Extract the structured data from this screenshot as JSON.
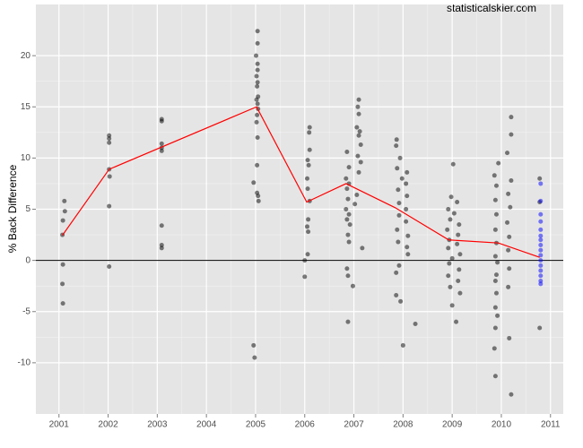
{
  "chart_data": {
    "type": "scatter",
    "watermark": "statisticalskier.com",
    "ylabel": "% Back Difference",
    "xlim": [
      2000.53,
      2011.26
    ],
    "ylim": [
      -15,
      25
    ],
    "xticks": [
      2001,
      2002,
      2003,
      2004,
      2005,
      2006,
      2007,
      2008,
      2009,
      2010,
      2011
    ],
    "yticks": [
      -10,
      -5,
      0,
      5,
      10,
      15,
      20
    ],
    "grid": true,
    "hline": 0,
    "hline_color": "#000000",
    "series": [
      {
        "color": "#000000",
        "x": [
          2001.11,
          2001.12,
          2001.08,
          2001.07,
          2001.08,
          2001.07,
          2001.08,
          2002.02,
          2002.02,
          2002.02,
          2002.02,
          2002.03,
          2002.02,
          2002.02,
          2003.09,
          2003.09,
          2003.09,
          2003.09,
          2003.09,
          2003.09,
          2003.09,
          2003.09,
          2005.04,
          2005.04,
          2005.01,
          2005.04,
          2005.04,
          2005.02,
          2005.04,
          2005.03,
          2005.05,
          2005.02,
          2005.04,
          2005.05,
          2005.03,
          2005.02,
          2005.04,
          2005.03,
          2004.96,
          2005.03,
          2005.05,
          2005.06,
          2004.96,
          2004.98,
          2006.1,
          2006.09,
          2006.1,
          2006.06,
          2006.08,
          2006.05,
          2006.06,
          2006.1,
          2006.07,
          2006.05,
          2006.07,
          2006.06,
          2006.0,
          2006.0,
          2007.1,
          2007.08,
          2007.1,
          2007.06,
          2007.12,
          2007.1,
          2007.14,
          2006.86,
          2007.08,
          2007.14,
          2006.9,
          2007.1,
          2006.84,
          2006.9,
          2006.86,
          2007.06,
          2006.88,
          2007.02,
          2006.84,
          2006.9,
          2006.86,
          2006.92,
          2006.88,
          2006.9,
          2007.17,
          2006.86,
          2006.88,
          2006.98,
          2006.88,
          2007.87,
          2007.86,
          2007.94,
          2007.88,
          2008.08,
          2007.98,
          2008.06,
          2007.9,
          2008.08,
          2007.92,
          2008.06,
          2007.92,
          2008.06,
          2007.88,
          2008.1,
          2007.9,
          2008.08,
          2008.1,
          2007.92,
          2007.86,
          2007.86,
          2007.95,
          2008.25,
          2008.0,
          2009.02,
          2008.98,
          2009.1,
          2008.92,
          2009.04,
          2008.96,
          2009.14,
          2008.9,
          2009.12,
          2008.94,
          2009.1,
          2008.92,
          2009.16,
          2009.0,
          2008.94,
          2009.14,
          2008.92,
          2009.12,
          2008.96,
          2009.16,
          2009.0,
          2009.08,
          2010.2,
          2010.2,
          2010.12,
          2009.94,
          2009.86,
          2010.2,
          2009.9,
          2010.14,
          2009.88,
          2010.18,
          2009.9,
          2010.12,
          2009.88,
          2010.16,
          2009.9,
          2010.14,
          2009.88,
          2009.92,
          2010.16,
          2009.9,
          2009.88,
          2010.14,
          2009.9,
          2009.88,
          2009.92,
          2009.88,
          2010.16,
          2009.86,
          2009.88,
          2010.2,
          2010.78,
          2010.78,
          2010.78
        ],
        "values": [
          5.8,
          4.8,
          3.9,
          2.5,
          -0.4,
          -2.3,
          -4.2,
          12.2,
          11.9,
          11.5,
          8.9,
          8.2,
          5.3,
          -0.6,
          13.8,
          13.6,
          11.4,
          11.0,
          10.7,
          3.4,
          1.5,
          1.2,
          22.4,
          21.2,
          20.0,
          19.2,
          18.6,
          18.0,
          17.4,
          17.0,
          16.0,
          15.7,
          15.3,
          14.8,
          14.2,
          13.5,
          12.0,
          9.3,
          7.6,
          6.6,
          6.3,
          5.8,
          -8.3,
          -9.5,
          13.0,
          12.5,
          10.8,
          9.8,
          9.3,
          8.0,
          7.0,
          5.8,
          4.0,
          3.3,
          2.8,
          0.6,
          0.0,
          -1.6,
          15.7,
          15.0,
          14.3,
          13.0,
          12.6,
          12.2,
          11.3,
          10.6,
          10.2,
          9.6,
          9.1,
          8.6,
          8.0,
          7.5,
          7.0,
          6.4,
          6.0,
          5.5,
          5.0,
          4.5,
          4.0,
          3.5,
          2.5,
          1.8,
          1.2,
          -0.8,
          -1.5,
          -2.5,
          -6.0,
          11.8,
          11.2,
          10.0,
          9.0,
          8.6,
          8.0,
          7.5,
          6.9,
          6.3,
          5.6,
          5.0,
          4.4,
          3.8,
          3.0,
          2.4,
          1.8,
          1.3,
          0.6,
          -0.5,
          -1.2,
          -3.4,
          -4.0,
          -6.2,
          -8.3,
          9.4,
          6.2,
          5.7,
          5.0,
          4.6,
          4.0,
          3.5,
          3.0,
          2.5,
          2.0,
          1.6,
          1.2,
          0.6,
          0.2,
          -0.3,
          -0.9,
          -1.5,
          -2.0,
          -2.6,
          -3.2,
          -4.4,
          -6.0,
          14.0,
          12.3,
          10.5,
          9.5,
          8.3,
          7.8,
          7.3,
          6.5,
          5.9,
          5.2,
          4.5,
          3.7,
          3.0,
          2.3,
          1.7,
          1.0,
          0.4,
          -0.2,
          -0.8,
          -1.4,
          -2.0,
          -2.6,
          -3.2,
          -4.6,
          -5.4,
          -6.6,
          -7.6,
          -8.6,
          -11.3,
          -13.1,
          8.0,
          5.7,
          -6.6
        ]
      },
      {
        "color": "#0000ff",
        "x": [
          2010.8,
          2010.8,
          2010.8,
          2010.8,
          2010.8,
          2010.8,
          2010.8,
          2010.8,
          2010.8,
          2010.8,
          2010.8,
          2010.8,
          2010.8,
          2010.8,
          2010.8,
          2010.8
        ],
        "values": [
          7.5,
          5.8,
          4.5,
          3.8,
          3.0,
          2.4,
          2.0,
          1.5,
          1.0,
          0.5,
          0.0,
          -0.5,
          -1.0,
          -1.5,
          -2.0,
          -2.3
        ]
      }
    ],
    "line": {
      "color": "#ff0000",
      "x": [
        2001.07,
        2002.02,
        2005.02,
        2006.04,
        2006.84,
        2007.84,
        2008.93,
        2009.94,
        2010.78
      ],
      "values": [
        2.45,
        8.9,
        15.0,
        5.7,
        7.5,
        5.15,
        2.0,
        1.7,
        0.3
      ]
    }
  }
}
